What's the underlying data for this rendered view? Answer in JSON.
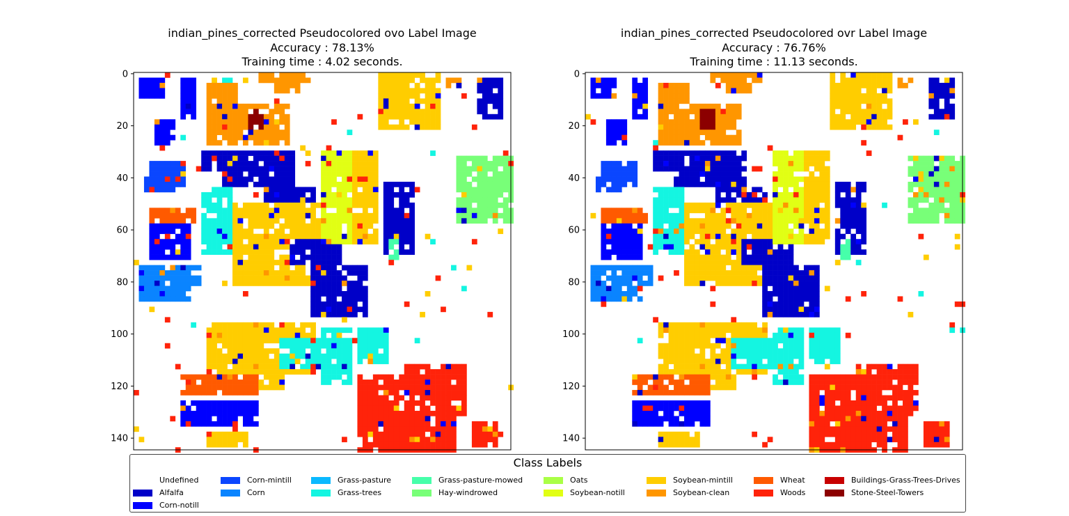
{
  "chart_data": [
    {
      "type": "heatmap",
      "title": "indian_pines_corrected Pseudocolored ovo Label Image",
      "accuracy": "Accuracy : 78.13%",
      "training_time": "Training time : 4.02 seconds.",
      "xlim": [
        0,
        144
      ],
      "ylim": [
        144,
        0
      ],
      "xticks": [
        "0",
        "20",
        "40",
        "60",
        "80",
        "100",
        "120",
        "140"
      ],
      "yticks": [
        "0",
        "20",
        "40",
        "60",
        "80",
        "100",
        "120",
        "140"
      ]
    },
    {
      "type": "heatmap",
      "title": "indian_pines_corrected Pseudocolored ovr Label Image",
      "accuracy": "Accuracy : 76.76%",
      "training_time": "Training time : 11.13 seconds.",
      "xlim": [
        0,
        144
      ],
      "ylim": [
        144,
        0
      ],
      "xticks": [
        "0",
        "20",
        "40",
        "60",
        "80",
        "100",
        "120",
        "140"
      ],
      "yticks": [
        "0",
        "20",
        "40",
        "60",
        "80",
        "100",
        "120",
        "140"
      ]
    }
  ],
  "legend": {
    "title": "Class Labels",
    "placement": "bottom",
    "items": [
      {
        "label": "Undefined",
        "color": "#ffffff"
      },
      {
        "label": "Alfalfa",
        "color": "#0000c8"
      },
      {
        "label": "Corn-notill",
        "color": "#0000ff"
      },
      {
        "label": "Corn-mintill",
        "color": "#0a46ff"
      },
      {
        "label": "Corn",
        "color": "#0a84ff"
      },
      {
        "label": "Grass-pasture",
        "color": "#0ab9ff"
      },
      {
        "label": "Grass-trees",
        "color": "#14f5e1"
      },
      {
        "label": "Grass-pasture-mowed",
        "color": "#46ffaa"
      },
      {
        "label": "Hay-windrowed",
        "color": "#78ff78"
      },
      {
        "label": "Oats",
        "color": "#aaff46"
      },
      {
        "label": "Soybean-notill",
        "color": "#e1ff14"
      },
      {
        "label": "Soybean-mintill",
        "color": "#ffcd00"
      },
      {
        "label": "Soybean-clean",
        "color": "#ff9600"
      },
      {
        "label": "Wheat",
        "color": "#ff5a00"
      },
      {
        "label": "Woods",
        "color": "#ff230a"
      },
      {
        "label": "Buildings-Grass-Trees-Drives",
        "color": "#c80000"
      },
      {
        "label": "Stone-Steel-Towers",
        "color": "#8c0000"
      }
    ]
  }
}
